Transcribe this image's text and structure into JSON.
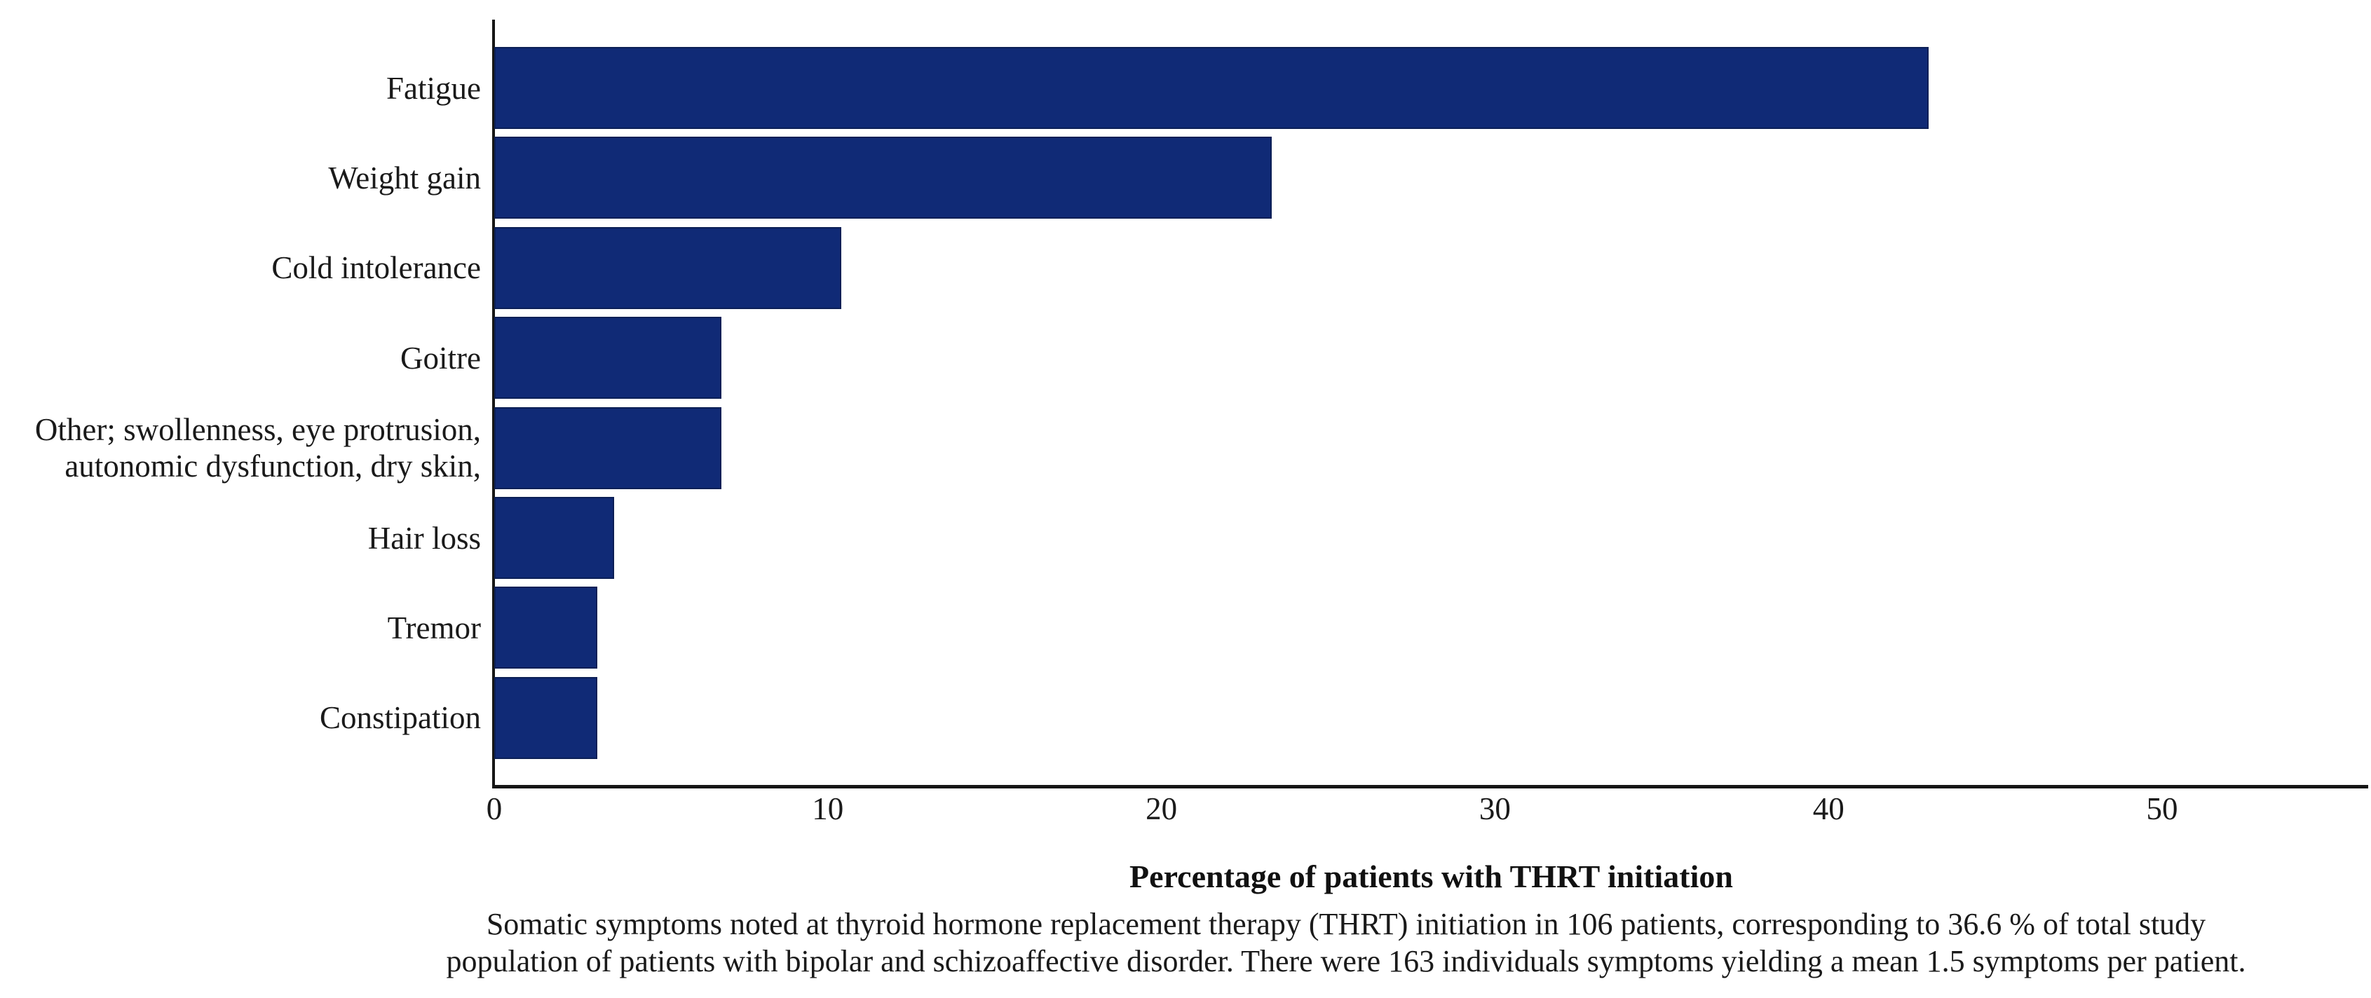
{
  "figure": {
    "xlabel": "Percentage of patients with THRT initiation",
    "caption_line1": "Somatic symptoms noted at thyroid hormone replacement therapy (THRT) initiation in 106 patients, corresponding to 36.6 % of total study",
    "caption_line2": "population of patients with bipolar and schizoaffective disorder. There were 163 individuals symptoms yielding a mean 1.5 symptoms per patient."
  },
  "chart_data": {
    "type": "bar",
    "orientation": "horizontal",
    "title": "",
    "xlabel": "Percentage of patients with THRT initiation",
    "ylabel": "",
    "categories": [
      "Fatigue",
      "Weight gain",
      "Cold intolerance",
      "Goitre",
      "Other; swollenness, eye protrusion,\nautonomic dysfunction, dry skin,",
      "Hair loss",
      "Tremor",
      "Constipation"
    ],
    "values": [
      43.0,
      23.3,
      10.4,
      6.8,
      6.8,
      3.6,
      3.1,
      3.1
    ],
    "xlim": [
      0,
      56.2
    ],
    "xticks": [
      0,
      10,
      20,
      30,
      40,
      50
    ],
    "grid": false,
    "legend": null,
    "bar_color": "#102a76",
    "axis_color": "#161616"
  }
}
